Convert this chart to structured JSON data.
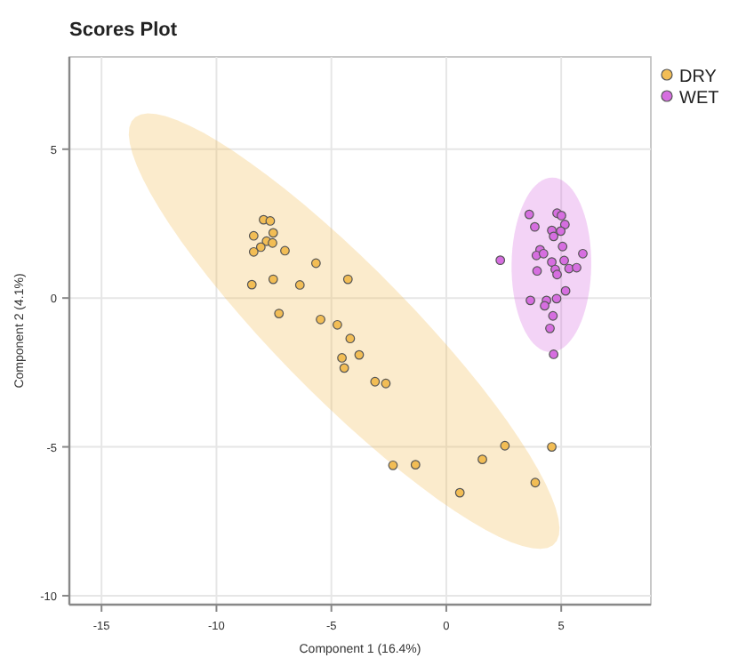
{
  "chart_data": {
    "type": "scatter",
    "title": "Scores Plot",
    "xlabel": "Component 1 (16.4%)",
    "ylabel": "Component 2 (4.1%)",
    "xlim": [
      -16.4,
      8.9
    ],
    "ylim": [
      -10.3,
      8.1
    ],
    "xticks": [
      -15,
      -10,
      -5,
      0,
      5
    ],
    "yticks": [
      -10,
      -5,
      0,
      5
    ],
    "grid": true,
    "legend": "top right",
    "marker": "circle",
    "series": [
      {
        "name": "DRY",
        "color": "#f2bd55",
        "x": [
          -7.95,
          -7.66,
          -8.38,
          -7.53,
          -7.82,
          -7.56,
          -8.07,
          -8.38,
          -7.02,
          -5.67,
          -8.46,
          -7.53,
          -6.37,
          -4.28,
          -7.28,
          -5.47,
          -4.74,
          -4.18,
          -3.79,
          -4.54,
          -4.44,
          -3.1,
          -2.63,
          -2.32,
          -1.34,
          1.57,
          2.55,
          4.59,
          0.59,
          3.87
        ],
        "values": [
          2.63,
          2.59,
          2.09,
          2.19,
          1.91,
          1.85,
          1.71,
          1.55,
          1.59,
          1.17,
          0.45,
          0.63,
          0.44,
          0.63,
          -0.52,
          -0.72,
          -0.9,
          -1.36,
          -1.91,
          -2.01,
          -2.35,
          -2.81,
          -2.87,
          -5.62,
          -5.6,
          -5.42,
          -4.96,
          -5.0,
          -6.54,
          -6.2
        ]
      },
      {
        "name": "WET",
        "color": "#d66ee0",
        "x": [
          3.61,
          4.82,
          5.01,
          3.85,
          5.16,
          4.59,
          4.98,
          4.67,
          5.06,
          2.35,
          4.08,
          3.92,
          4.23,
          5.94,
          4.59,
          5.13,
          3.95,
          4.74,
          4.82,
          5.34,
          5.67,
          5.19,
          4.8,
          3.66,
          4.36,
          4.28,
          4.64,
          4.51,
          4.67
        ],
        "values": [
          2.81,
          2.85,
          2.77,
          2.39,
          2.47,
          2.27,
          2.25,
          2.07,
          1.73,
          1.27,
          1.62,
          1.43,
          1.49,
          1.49,
          1.21,
          1.26,
          0.91,
          0.96,
          0.79,
          0.99,
          1.02,
          0.24,
          -0.02,
          -0.08,
          -0.08,
          -0.26,
          -0.6,
          -1.02,
          -1.89
        ]
      }
    ]
  }
}
